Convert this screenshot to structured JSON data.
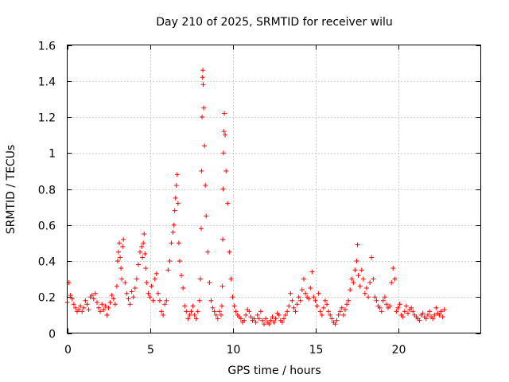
{
  "chart_data": {
    "type": "scatter",
    "title": "Day 210 of 2025, SRMTID for receiver wilu",
    "xlabel": "GPS time / hours",
    "ylabel": "SRMTID / TECUs",
    "xlim": [
      0,
      25
    ],
    "ylim": [
      0,
      1.6
    ],
    "xticks": [
      0,
      5,
      10,
      15,
      20
    ],
    "xtick_labels": [
      "0",
      "5",
      "10",
      "15",
      "20"
    ],
    "yticks": [
      0,
      0.2,
      0.4,
      0.6,
      0.8,
      1.0,
      1.2,
      1.4,
      1.6
    ],
    "ytick_labels": [
      "0",
      "0.2",
      "0.4",
      "0.6",
      "0.8",
      "1",
      "1.2",
      "1.4",
      "1.6"
    ],
    "grid": true,
    "marker": "+",
    "series_color": "#ff0000",
    "series": [
      {
        "name": "SRMTID",
        "x": [
          0.0,
          0.1,
          0.2,
          0.3,
          0.4,
          0.5,
          0.6,
          0.7,
          0.8,
          0.9,
          1.0,
          1.1,
          1.2,
          1.3,
          1.4,
          1.5,
          1.6,
          1.7,
          1.8,
          1.9,
          2.0,
          2.1,
          2.2,
          2.3,
          2.4,
          2.5,
          2.6,
          2.7,
          2.8,
          2.9,
          3.0,
          3.05,
          3.1,
          3.15,
          3.2,
          3.25,
          3.3,
          3.35,
          3.4,
          3.5,
          3.6,
          3.7,
          3.8,
          3.9,
          4.0,
          4.1,
          4.2,
          4.3,
          4.4,
          4.5,
          4.55,
          4.6,
          4.65,
          4.7,
          4.75,
          4.8,
          4.9,
          5.0,
          5.1,
          5.2,
          5.3,
          5.4,
          5.5,
          5.6,
          5.7,
          5.8,
          5.9,
          6.0,
          6.1,
          6.2,
          6.3,
          6.4,
          6.45,
          6.5,
          6.55,
          6.6,
          6.65,
          6.7,
          6.75,
          6.8,
          6.9,
          7.0,
          7.1,
          7.2,
          7.3,
          7.4,
          7.5,
          7.6,
          7.7,
          7.8,
          7.9,
          8.0,
          8.05,
          8.1,
          8.12,
          8.15,
          8.18,
          8.2,
          8.22,
          8.25,
          8.3,
          8.35,
          8.4,
          8.5,
          8.6,
          8.7,
          8.8,
          8.9,
          9.0,
          9.1,
          9.2,
          9.3,
          9.35,
          9.38,
          9.4,
          9.42,
          9.45,
          9.48,
          9.5,
          9.55,
          9.6,
          9.7,
          9.8,
          9.9,
          10.0,
          10.1,
          10.2,
          10.3,
          10.4,
          10.5,
          10.6,
          10.7,
          10.8,
          10.9,
          11.0,
          11.1,
          11.2,
          11.3,
          11.4,
          11.5,
          11.6,
          11.7,
          11.8,
          11.9,
          12.0,
          12.1,
          12.2,
          12.3,
          12.4,
          12.5,
          12.6,
          12.7,
          12.8,
          12.9,
          13.0,
          13.1,
          13.2,
          13.3,
          13.4,
          13.5,
          13.6,
          13.7,
          13.8,
          13.9,
          14.0,
          14.1,
          14.2,
          14.3,
          14.4,
          14.5,
          14.6,
          14.7,
          14.8,
          14.9,
          15.0,
          15.1,
          15.2,
          15.3,
          15.4,
          15.5,
          15.6,
          15.7,
          15.8,
          15.9,
          16.0,
          16.1,
          16.2,
          16.3,
          16.4,
          16.5,
          16.6,
          16.7,
          16.8,
          16.9,
          17.0,
          17.1,
          17.2,
          17.3,
          17.4,
          17.5,
          17.55,
          17.6,
          17.7,
          17.8,
          17.9,
          18.0,
          18.1,
          18.2,
          18.3,
          18.4,
          18.5,
          18.6,
          18.7,
          18.8,
          18.9,
          19.0,
          19.1,
          19.2,
          19.3,
          19.4,
          19.5,
          19.6,
          19.7,
          19.8,
          19.9,
          20.0,
          20.1,
          20.2,
          20.3,
          20.4,
          20.5,
          20.6,
          20.7,
          20.8,
          20.9,
          21.0,
          21.1,
          21.2,
          21.3,
          21.4,
          21.5,
          21.6,
          21.7,
          21.8,
          21.9,
          22.0,
          22.1,
          22.2,
          22.3,
          22.4,
          22.5,
          22.6,
          22.7,
          22.8
        ],
        "y": [
          0.17,
          0.28,
          0.21,
          0.19,
          0.16,
          0.14,
          0.12,
          0.13,
          0.15,
          0.12,
          0.14,
          0.18,
          0.16,
          0.13,
          0.2,
          0.21,
          0.19,
          0.22,
          0.17,
          0.14,
          0.12,
          0.16,
          0.13,
          0.15,
          0.1,
          0.14,
          0.17,
          0.21,
          0.19,
          0.16,
          0.26,
          0.4,
          0.45,
          0.5,
          0.42,
          0.36,
          0.3,
          0.48,
          0.52,
          0.28,
          0.22,
          0.19,
          0.16,
          0.23,
          0.2,
          0.25,
          0.3,
          0.38,
          0.45,
          0.48,
          0.42,
          0.5,
          0.55,
          0.44,
          0.36,
          0.28,
          0.22,
          0.2,
          0.26,
          0.18,
          0.3,
          0.33,
          0.22,
          0.18,
          0.12,
          0.1,
          0.16,
          0.18,
          0.35,
          0.4,
          0.5,
          0.56,
          0.6,
          0.68,
          0.75,
          0.82,
          0.88,
          0.72,
          0.5,
          0.4,
          0.32,
          0.25,
          0.15,
          0.12,
          0.08,
          0.1,
          0.12,
          0.15,
          0.1,
          0.08,
          0.12,
          0.18,
          0.3,
          0.58,
          0.9,
          1.2,
          1.42,
          1.46,
          1.38,
          1.25,
          1.04,
          0.82,
          0.65,
          0.45,
          0.28,
          0.18,
          0.14,
          0.12,
          0.1,
          0.08,
          0.12,
          0.1,
          0.15,
          0.26,
          0.52,
          0.8,
          1.0,
          1.12,
          1.22,
          1.1,
          0.9,
          0.72,
          0.45,
          0.3,
          0.2,
          0.15,
          0.12,
          0.1,
          0.09,
          0.08,
          0.06,
          0.07,
          0.1,
          0.13,
          0.12,
          0.09,
          0.07,
          0.08,
          0.06,
          0.1,
          0.08,
          0.12,
          0.07,
          0.05,
          0.08,
          0.06,
          0.05,
          0.07,
          0.09,
          0.06,
          0.08,
          0.11,
          0.1,
          0.07,
          0.06,
          0.08,
          0.1,
          0.12,
          0.15,
          0.22,
          0.18,
          0.14,
          0.12,
          0.16,
          0.2,
          0.18,
          0.24,
          0.3,
          0.22,
          0.2,
          0.19,
          0.25,
          0.34,
          0.2,
          0.18,
          0.15,
          0.22,
          0.12,
          0.1,
          0.14,
          0.18,
          0.16,
          0.12,
          0.1,
          0.08,
          0.06,
          0.05,
          0.07,
          0.1,
          0.12,
          0.14,
          0.1,
          0.13,
          0.16,
          0.18,
          0.24,
          0.3,
          0.28,
          0.35,
          0.4,
          0.49,
          0.32,
          0.26,
          0.35,
          0.3,
          0.22,
          0.25,
          0.2,
          0.28,
          0.42,
          0.3,
          0.2,
          0.18,
          0.15,
          0.14,
          0.12,
          0.18,
          0.2,
          0.16,
          0.14,
          0.15,
          0.28,
          0.36,
          0.3,
          0.12,
          0.14,
          0.16,
          0.1,
          0.09,
          0.12,
          0.15,
          0.11,
          0.13,
          0.14,
          0.12,
          0.1,
          0.09,
          0.08,
          0.07,
          0.1,
          0.11,
          0.09,
          0.08,
          0.1,
          0.12,
          0.09,
          0.08,
          0.1,
          0.14,
          0.11,
          0.1,
          0.12,
          0.09,
          0.13
        ]
      }
    ]
  }
}
